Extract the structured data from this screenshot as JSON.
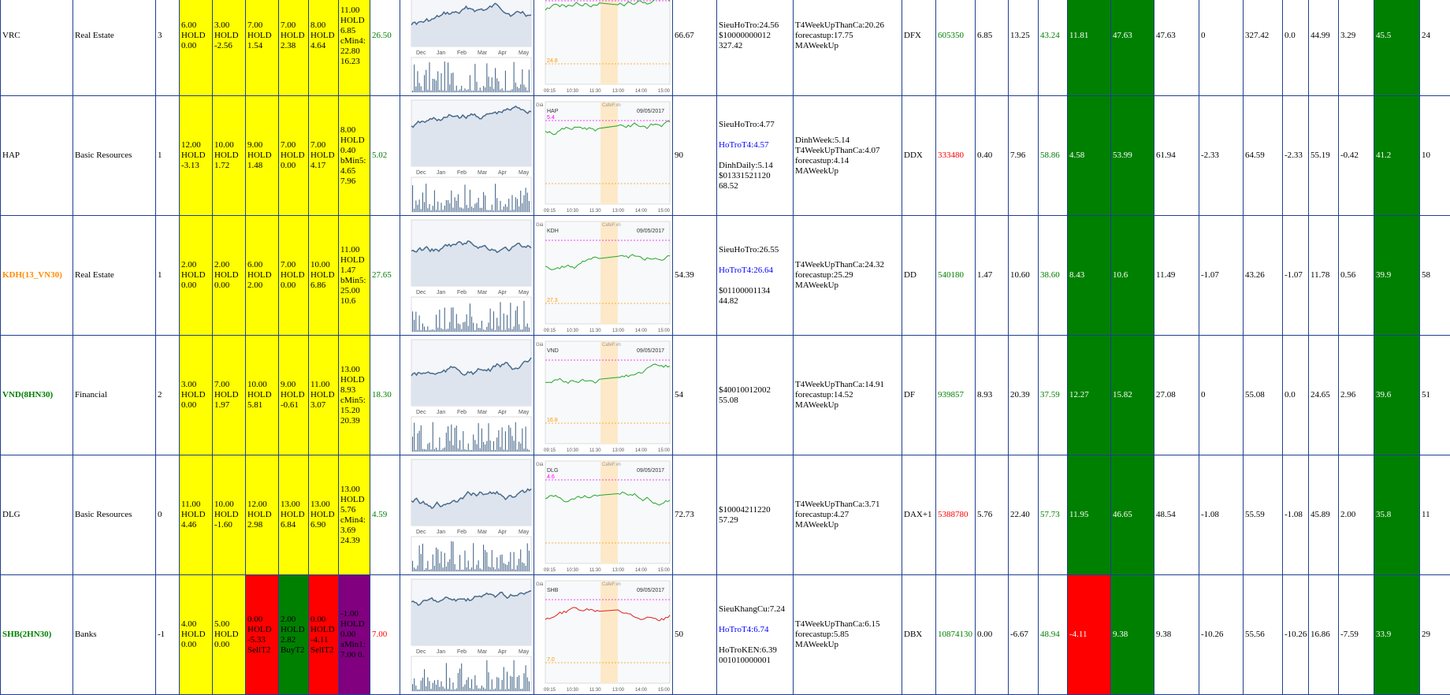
{
  "rows": [
    {
      "ticker": "VRC",
      "ticker_style": "plain",
      "sector": "Real Estate",
      "rank": "3",
      "signals": [
        {
          "lines": [
            "6.00",
            "HOLD",
            "0.00"
          ],
          "bg": "y"
        },
        {
          "lines": [
            "3.00",
            "HOLD",
            "-2.56"
          ],
          "bg": "y"
        },
        {
          "lines": [
            "7.00",
            "HOLD",
            "1.54"
          ],
          "bg": "y"
        },
        {
          "lines": [
            "7.00",
            "HOLD",
            "2.38"
          ],
          "bg": "y"
        },
        {
          "lines": [
            "8.00",
            "HOLD",
            "4.64"
          ],
          "bg": "y"
        },
        {
          "lines": [
            "11.00",
            "HOLD",
            "6.85",
            "cMin4:",
            "22.80",
            "16.23"
          ],
          "bg": "y"
        }
      ],
      "price": "26.50",
      "price_color": "green",
      "intraday_ticker": "VRC",
      "intraday_date": "09/05/2017",
      "intraday_high": "26.5",
      "intraday_low": "24.8",
      "score": "66.67",
      "support": [
        {
          "t": "SieuHoTro:24.56",
          "c": ""
        },
        {
          "t": "$10000000012",
          "c": ""
        },
        {
          "t": "327.42",
          "c": ""
        }
      ],
      "forecast": [
        "T4WeekUpThanCa:20.26",
        "forecastup:17.75",
        "MAWeekUp"
      ],
      "code": "DFX",
      "volume": "605350",
      "volume_color": "green",
      "v1": "6.85",
      "v2": "13.25",
      "v3": "43.24",
      "c1": "11.81",
      "c1bg": "g",
      "c2": "47.63",
      "c2bg": "g",
      "v4": "47.63",
      "v5": "0",
      "v6": "327.42",
      "v7": "0.0",
      "v8": "44.99",
      "v9": "3.29",
      "c3": "45.5",
      "last": "24"
    },
    {
      "ticker": "HAP",
      "ticker_style": "plain",
      "sector": "Basic Resources",
      "rank": "1",
      "signals": [
        {
          "lines": [
            "12.00",
            "HOLD",
            "-3.13"
          ],
          "bg": "y"
        },
        {
          "lines": [
            "10.00",
            "HOLD",
            "1.72"
          ],
          "bg": "y"
        },
        {
          "lines": [
            "9.00",
            "HOLD",
            "1.48"
          ],
          "bg": "y"
        },
        {
          "lines": [
            "7.00",
            "HOLD",
            "0.00"
          ],
          "bg": "y"
        },
        {
          "lines": [
            "7.00",
            "HOLD",
            "4.17"
          ],
          "bg": "y"
        },
        {
          "lines": [
            "8.00",
            "HOLD",
            "0.40",
            "bMin5:",
            "4.65",
            "7.96"
          ],
          "bg": "y"
        }
      ],
      "price": "5.02",
      "price_color": "green",
      "intraday_ticker": "HAP",
      "intraday_date": "09/05/2017",
      "intraday_high": "5.4",
      "intraday_low": "",
      "score": "90",
      "support": [
        {
          "t": "SieuHoTro:4.77",
          "c": ""
        },
        {
          "t": "",
          "c": ""
        },
        {
          "t": "HoTroT4:4.57",
          "c": "blue"
        },
        {
          "t": "",
          "c": ""
        },
        {
          "t": "DinhDaily:5.14",
          "c": ""
        },
        {
          "t": "$01331521120",
          "c": ""
        },
        {
          "t": "68.52",
          "c": ""
        }
      ],
      "forecast": [
        "DinhWeek:5.14",
        "T4WeekUpThanCa:4.07",
        "forecastup:4.14",
        "MAWeekUp"
      ],
      "code": "DDX",
      "volume": "333480",
      "volume_color": "red",
      "v1": "0.40",
      "v2": "7.96",
      "v3": "58.86",
      "c1": "4.58",
      "c1bg": "g",
      "c2": "53.99",
      "c2bg": "g",
      "v4": "61.94",
      "v5": "-2.33",
      "v6": "64.59",
      "v7": "-2.33",
      "v8": "55.19",
      "v9": "-0.42",
      "c3": "41.2",
      "last": "10"
    },
    {
      "ticker": "KDH(13_VN30)",
      "ticker_style": "orange",
      "sector": "Real Estate",
      "rank": "1",
      "signals": [
        {
          "lines": [
            "2.00",
            "HOLD",
            "0.00"
          ],
          "bg": "y"
        },
        {
          "lines": [
            "2.00",
            "HOLD",
            "0.00"
          ],
          "bg": "y"
        },
        {
          "lines": [
            "6.00",
            "HOLD",
            "2.00"
          ],
          "bg": "y"
        },
        {
          "lines": [
            "7.00",
            "HOLD",
            "0.00"
          ],
          "bg": "y"
        },
        {
          "lines": [
            "10.00",
            "HOLD",
            "6.86"
          ],
          "bg": "y"
        },
        {
          "lines": [
            "11.00",
            "HOLD",
            "1.47",
            "bMin5:",
            "25.00",
            "10.6"
          ],
          "bg": "y"
        }
      ],
      "price": "27.65",
      "price_color": "green",
      "intraday_ticker": "KDH",
      "intraday_date": "09/05/2017",
      "intraday_high": "",
      "intraday_low": "27.3",
      "score": "54.39",
      "support": [
        {
          "t": "SieuHoTro:26.55",
          "c": ""
        },
        {
          "t": "",
          "c": ""
        },
        {
          "t": "HoTroT4:26.64",
          "c": "blue"
        },
        {
          "t": "",
          "c": ""
        },
        {
          "t": "$01100001134",
          "c": ""
        },
        {
          "t": "44.82",
          "c": ""
        }
      ],
      "forecast": [
        "T4WeekUpThanCa:24.32",
        "forecastup:25.29",
        "MAWeekUp"
      ],
      "code": "DD",
      "volume": "540180",
      "volume_color": "green",
      "v1": "1.47",
      "v2": "10.60",
      "v3": "38.60",
      "c1": "8.43",
      "c1bg": "g",
      "c2": "10.6",
      "c2bg": "g",
      "v4": "11.49",
      "v5": "-1.07",
      "v6": "43.26",
      "v7": "-1.07",
      "v8": "11.78",
      "v9": "0.56",
      "c3": "39.9",
      "last": "58"
    },
    {
      "ticker": "VND(8HN30)",
      "ticker_style": "greenb",
      "sector": "Financial",
      "rank": "2",
      "signals": [
        {
          "lines": [
            "3.00",
            "HOLD",
            "0.00"
          ],
          "bg": "y"
        },
        {
          "lines": [
            "7.00",
            "HOLD",
            "1.97"
          ],
          "bg": "y"
        },
        {
          "lines": [
            "10.00",
            "HOLD",
            "5.81"
          ],
          "bg": "y"
        },
        {
          "lines": [
            "9.00",
            "HOLD",
            "-0.61"
          ],
          "bg": "y"
        },
        {
          "lines": [
            "11.00",
            "HOLD",
            "3.07"
          ],
          "bg": "y"
        },
        {
          "lines": [
            "13.00",
            "HOLD",
            "8.93",
            "cMin5:",
            "15.20",
            "20.39"
          ],
          "bg": "y"
        }
      ],
      "price": "18.30",
      "price_color": "green",
      "intraday_ticker": "VND",
      "intraday_date": "09/05/2017",
      "intraday_high": "",
      "intraday_low": "16.8",
      "score": "54",
      "support": [
        {
          "t": "$40010012002",
          "c": ""
        },
        {
          "t": "55.08",
          "c": ""
        }
      ],
      "forecast": [
        "T4WeekUpThanCa:14.91",
        "forecastup:14.52",
        "MAWeekUp"
      ],
      "code": "DF",
      "volume": "939857",
      "volume_color": "green",
      "v1": "8.93",
      "v2": "20.39",
      "v3": "37.59",
      "c1": "12.27",
      "c1bg": "g",
      "c2": "15.82",
      "c2bg": "g",
      "v4": "27.08",
      "v5": "0",
      "v6": "55.08",
      "v7": "0.0",
      "v8": "24.65",
      "v9": "2.96",
      "c3": "39.6",
      "last": "51"
    },
    {
      "ticker": "DLG",
      "ticker_style": "plain",
      "sector": "Basic Resources",
      "rank": "0",
      "signals": [
        {
          "lines": [
            "11.00",
            "HOLD",
            "4.46"
          ],
          "bg": "y"
        },
        {
          "lines": [
            "10.00",
            "HOLD",
            "-1.60"
          ],
          "bg": "y"
        },
        {
          "lines": [
            "12.00",
            "HOLD",
            "2.98"
          ],
          "bg": "y"
        },
        {
          "lines": [
            "13.00",
            "HOLD",
            "6.84"
          ],
          "bg": "y"
        },
        {
          "lines": [
            "13.00",
            "HOLD",
            "6.90"
          ],
          "bg": "y"
        },
        {
          "lines": [
            "13.00",
            "HOLD",
            "5.76",
            "cMin4:",
            "3.69",
            "24.39"
          ],
          "bg": "y"
        }
      ],
      "price": "4.59",
      "price_color": "green",
      "intraday_ticker": "DLG",
      "intraday_date": "09/05/2017",
      "intraday_high": "4.6",
      "intraday_low": "",
      "score": "72.73",
      "support": [
        {
          "t": "$10004211220",
          "c": ""
        },
        {
          "t": "57.29",
          "c": ""
        }
      ],
      "forecast": [
        "T4WeekUpThanCa:3.71",
        "forecastup:4.27",
        "MAWeekUp"
      ],
      "code": "DAX+1",
      "volume": "5388780",
      "volume_color": "red",
      "v1": "5.76",
      "v2": "22.40",
      "v3": "57.73",
      "c1": "11.95",
      "c1bg": "g",
      "c2": "46.65",
      "c2bg": "g",
      "v4": "48.54",
      "v5": "-1.08",
      "v6": "55.59",
      "v7": "-1.08",
      "v8": "45.89",
      "v9": "2.00",
      "c3": "35.8",
      "last": "11"
    },
    {
      "ticker": "SHB(2HN30)",
      "ticker_style": "greenb",
      "sector": "Banks",
      "rank": "-1",
      "signals": [
        {
          "lines": [
            "4.00",
            "HOLD",
            "0.00"
          ],
          "bg": "y"
        },
        {
          "lines": [
            "5.00",
            "HOLD",
            "0.00"
          ],
          "bg": "y"
        },
        {
          "lines": [
            "0.00",
            "HOLD",
            "-5.33",
            "SellT2"
          ],
          "bg": "r"
        },
        {
          "lines": [
            "2.00",
            "HOLD",
            "2.82",
            "BuyT2"
          ],
          "bg": "gr"
        },
        {
          "lines": [
            "0.00",
            "HOLD",
            "-4.11",
            "SellT2"
          ],
          "bg": "r"
        },
        {
          "lines": [
            "-1.00",
            "HOLD",
            "0.00",
            "aMin1:",
            "7.00 0."
          ],
          "bg": "p"
        }
      ],
      "price": "7.00",
      "price_color": "red",
      "intraday_ticker": "SHB",
      "intraday_date": "09/05/2017",
      "intraday_high": "",
      "intraday_low": "7.0",
      "score": "50",
      "support": [
        {
          "t": "SieuKhangCu:7.24",
          "c": ""
        },
        {
          "t": "",
          "c": ""
        },
        {
          "t": "HoTroT4:6.74",
          "c": "blue"
        },
        {
          "t": "",
          "c": ""
        },
        {
          "t": "HoTroKEN:6.39",
          "c": ""
        },
        {
          "t": "001010000001",
          "c": ""
        }
      ],
      "forecast": [
        "T4WeekUpThanCa:6.15",
        "forecastup:5.85",
        "MAWeekUp"
      ],
      "code": "DBX",
      "volume": "10874130",
      "volume_color": "green",
      "v1": "0.00",
      "v2": "-6.67",
      "v3": "48.94",
      "c1": "-4.11",
      "c1bg": "rc",
      "c2": "9.38",
      "c2bg": "g",
      "v4": "9.38",
      "v5": "-10.26",
      "v6": "55.56",
      "v7": "-10.26",
      "v8": "16.86",
      "v9": "-7.59",
      "c3": "33.9",
      "last": "29"
    }
  ],
  "chart_labels": {
    "months": [
      "Dec",
      "Jan",
      "Feb",
      "Mar",
      "Apr",
      "May"
    ],
    "hours": [
      "09:15",
      "10:30",
      "11:30",
      "13:00",
      "14:00",
      "15:00"
    ],
    "intraday_caption": "CafeF.vn",
    "price_axis_label": "Giá"
  },
  "colors": {
    "line": "#4a6a8c",
    "intraday_line": "#28a428",
    "highlight": "#ff00ff",
    "low": "#ff9900",
    "lunch_band": "#fde9c8",
    "cell_green": "#008000",
    "cell_yellow": "#ffff00"
  }
}
